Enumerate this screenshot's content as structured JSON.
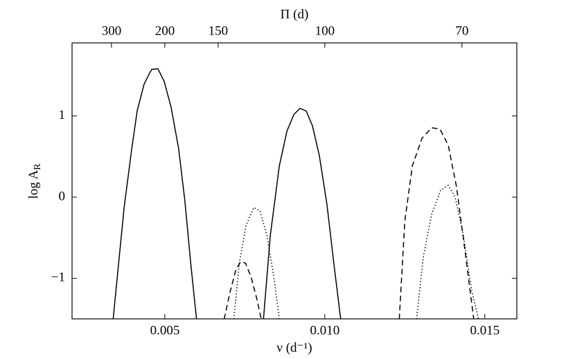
{
  "chart_data": {
    "type": "line",
    "x_label": "ν (d⁻¹)",
    "y_label": {
      "text": "log A",
      "sub": "R"
    },
    "x2_label": "Π (d)",
    "xlim": [
      0.0021,
      0.016
    ],
    "ylim": [
      -1.5,
      1.9
    ],
    "xticks": [
      0.005,
      {
        "value": 0.01,
        "label": "0.010"
      },
      0.015
    ],
    "yticks": [
      {
        "value": -1,
        "label": "−1"
      },
      0,
      1
    ],
    "x2ticks": [
      300,
      200,
      150,
      100,
      70
    ],
    "series": [
      {
        "color": "#000000",
        "style": "solid",
        "x": [
          0.003384,
          0.003728,
          0.003966,
          0.004138,
          0.004353,
          0.004504,
          0.004591,
          0.004784,
          0.004978,
          0.005194,
          0.005431,
          0.005625,
          0.005819,
          0.005991
        ],
        "values": [
          -1.504,
          -0.128,
          0.598,
          1.068,
          1.393,
          1.513,
          1.573,
          1.581,
          1.427,
          1.111,
          0.598,
          -0.043,
          -0.855,
          -1.504
        ]
      },
      {
        "color": "#000000",
        "style": "solid",
        "x": [
          0.008082,
          0.008297,
          0.008578,
          0.008815,
          0.00903,
          0.009224,
          0.009418,
          0.009612,
          0.009828,
          0.010065,
          0.01028,
          0.010496
        ],
        "values": [
          -1.504,
          -0.47,
          0.385,
          0.812,
          1.017,
          1.094,
          1.06,
          0.88,
          0.513,
          -0.085,
          -0.812,
          -1.504
        ]
      },
      {
        "color": "#000000",
        "style": "dashed",
        "x": [
          0.006853,
          0.007047,
          0.00722,
          0.007371,
          0.007521,
          0.007694,
          0.007866,
          0.008017
        ],
        "values": [
          -1.504,
          -1.154,
          -0.897,
          -0.795,
          -0.812,
          -0.983,
          -1.239,
          -1.504
        ]
      },
      {
        "color": "#000000",
        "style": "dotted",
        "x": [
          0.007155,
          0.007328,
          0.007543,
          0.00778,
          0.007974,
          0.008189,
          0.008405,
          0.008578
        ],
        "values": [
          -1.504,
          -0.812,
          -0.342,
          -0.128,
          -0.171,
          -0.47,
          -0.983,
          -1.504
        ]
      },
      {
        "color": "#000000",
        "style": "dashed",
        "x": [
          0.012327,
          0.012499,
          0.012736,
          0.013038,
          0.013339,
          0.013598,
          0.013857,
          0.014115,
          0.014374,
          0.014654
        ],
        "values": [
          -1.504,
          -0.299,
          0.385,
          0.726,
          0.855,
          0.838,
          0.641,
          0.128,
          -0.641,
          -1.504
        ]
      },
      {
        "color": "#000000",
        "style": "dotted",
        "x": [
          0.012866,
          0.013082,
          0.013339,
          0.01362,
          0.013857,
          0.014072,
          0.014331,
          0.01459,
          0.014805
        ],
        "values": [
          -1.504,
          -0.726,
          -0.214,
          0.085,
          0.145,
          0,
          -0.47,
          -1.154,
          -1.504
        ]
      }
    ]
  }
}
